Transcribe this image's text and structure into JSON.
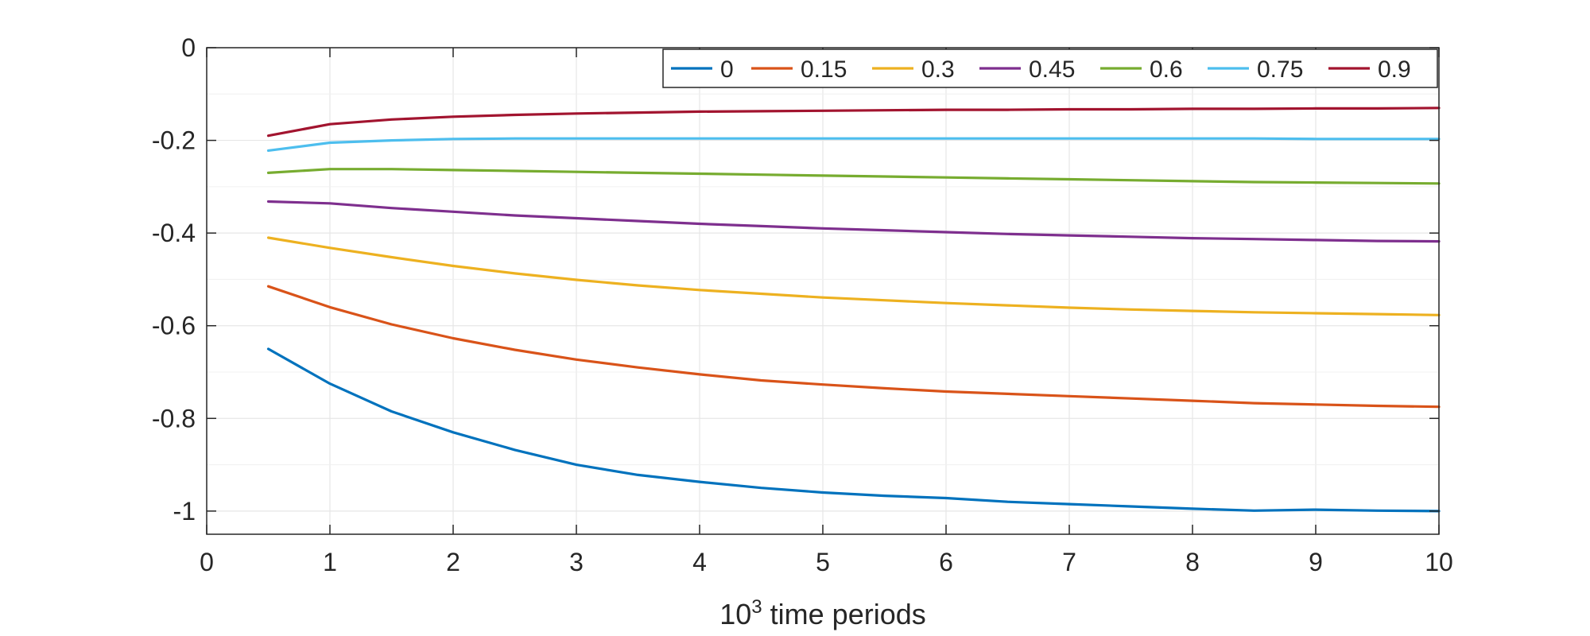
{
  "chart_data": {
    "type": "line",
    "title": "",
    "xlabel": {
      "base": "10",
      "exponent": "3",
      "rest": " time periods"
    },
    "ylabel": "",
    "xlim": [
      0,
      10
    ],
    "ylim": [
      -1.05,
      0
    ],
    "xticks": [
      0,
      1,
      2,
      3,
      4,
      5,
      6,
      7,
      8,
      9,
      10
    ],
    "xtick_labels": [
      "0",
      "1",
      "2",
      "3",
      "4",
      "5",
      "6",
      "7",
      "8",
      "9",
      "10"
    ],
    "yticks": [
      0,
      -0.2,
      -0.4,
      -0.6,
      -0.8,
      -1
    ],
    "ytick_labels": [
      "0",
      "-0.2",
      "-0.4",
      "-0.6",
      "-0.8",
      "-1"
    ],
    "grid": true,
    "legend_position": "top-right",
    "x": [
      0.5,
      1,
      1.5,
      2,
      2.5,
      3,
      3.5,
      4,
      4.5,
      5,
      5.5,
      6,
      6.5,
      7,
      7.5,
      8,
      8.5,
      9,
      9.5,
      10
    ],
    "series": [
      {
        "name": "0",
        "color": "#0072BD",
        "values": [
          -0.65,
          -0.725,
          -0.785,
          -0.83,
          -0.868,
          -0.9,
          -0.922,
          -0.937,
          -0.95,
          -0.96,
          -0.967,
          -0.972,
          -0.98,
          -0.985,
          -0.99,
          -0.995,
          -0.999,
          -0.997,
          -0.999,
          -1.0
        ]
      },
      {
        "name": "0.15",
        "color": "#D95319",
        "values": [
          -0.515,
          -0.56,
          -0.597,
          -0.627,
          -0.652,
          -0.673,
          -0.69,
          -0.705,
          -0.718,
          -0.727,
          -0.735,
          -0.742,
          -0.747,
          -0.752,
          -0.757,
          -0.762,
          -0.767,
          -0.77,
          -0.773,
          -0.775
        ]
      },
      {
        "name": "0.3",
        "color": "#EDB120",
        "values": [
          -0.41,
          -0.432,
          -0.452,
          -0.471,
          -0.487,
          -0.501,
          -0.513,
          -0.523,
          -0.531,
          -0.539,
          -0.545,
          -0.551,
          -0.556,
          -0.561,
          -0.565,
          -0.568,
          -0.571,
          -0.573,
          -0.575,
          -0.577
        ]
      },
      {
        "name": "0.45",
        "color": "#7E2F8E",
        "values": [
          -0.332,
          -0.336,
          -0.346,
          -0.354,
          -0.362,
          -0.368,
          -0.374,
          -0.38,
          -0.385,
          -0.39,
          -0.394,
          -0.398,
          -0.402,
          -0.405,
          -0.408,
          -0.411,
          -0.413,
          -0.415,
          -0.417,
          -0.418
        ]
      },
      {
        "name": "0.6",
        "color": "#77AC30",
        "values": [
          -0.27,
          -0.262,
          -0.262,
          -0.264,
          -0.266,
          -0.268,
          -0.27,
          -0.272,
          -0.274,
          -0.276,
          -0.278,
          -0.28,
          -0.282,
          -0.284,
          -0.286,
          -0.288,
          -0.29,
          -0.291,
          -0.292,
          -0.293
        ]
      },
      {
        "name": "0.75",
        "color": "#4DBEEE",
        "values": [
          -0.222,
          -0.205,
          -0.2,
          -0.197,
          -0.196,
          -0.196,
          -0.196,
          -0.196,
          -0.196,
          -0.196,
          -0.196,
          -0.196,
          -0.196,
          -0.196,
          -0.196,
          -0.196,
          -0.196,
          -0.197,
          -0.197,
          -0.197
        ]
      },
      {
        "name": "0.9",
        "color": "#A2142F",
        "values": [
          -0.19,
          -0.165,
          -0.155,
          -0.149,
          -0.145,
          -0.142,
          -0.14,
          -0.138,
          -0.137,
          -0.136,
          -0.135,
          -0.134,
          -0.134,
          -0.133,
          -0.133,
          -0.132,
          -0.132,
          -0.131,
          -0.131,
          -0.13
        ]
      }
    ]
  }
}
